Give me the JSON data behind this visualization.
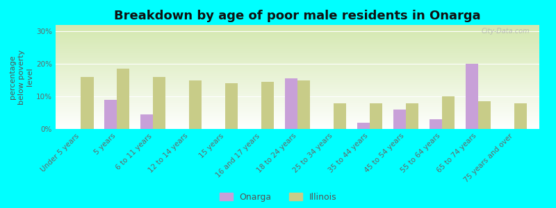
{
  "title": "Breakdown by age of poor male residents in Onarga",
  "ylabel": "percentage\nbelow poverty\nlevel",
  "background_color": "#00ffff",
  "watermark": "City-Data.com",
  "categories": [
    "Under 5 years",
    "5 years",
    "6 to 11 years",
    "12 to 14 years",
    "15 years",
    "16 and 17 years",
    "18 to 24 years",
    "25 to 34 years",
    "35 to 44 years",
    "45 to 54 years",
    "55 to 64 years",
    "65 to 74 years",
    "75 years and over"
  ],
  "onarga": [
    0,
    9,
    4.5,
    0,
    0,
    0,
    15.5,
    0,
    2,
    6,
    3,
    20,
    0
  ],
  "illinois": [
    16,
    18.5,
    16,
    15,
    14,
    14.5,
    15,
    8,
    8,
    8,
    10,
    8.5,
    8
  ],
  "onarga_color": "#c8a0d8",
  "illinois_color": "#c8cc88",
  "ylim": [
    0,
    32
  ],
  "yticks": [
    0,
    10,
    20,
    30
  ],
  "ytick_labels": [
    "0%",
    "10%",
    "20%",
    "30%"
  ],
  "title_fontsize": 13,
  "axis_fontsize": 8,
  "tick_fontsize": 7.5,
  "legend_fontsize": 9
}
